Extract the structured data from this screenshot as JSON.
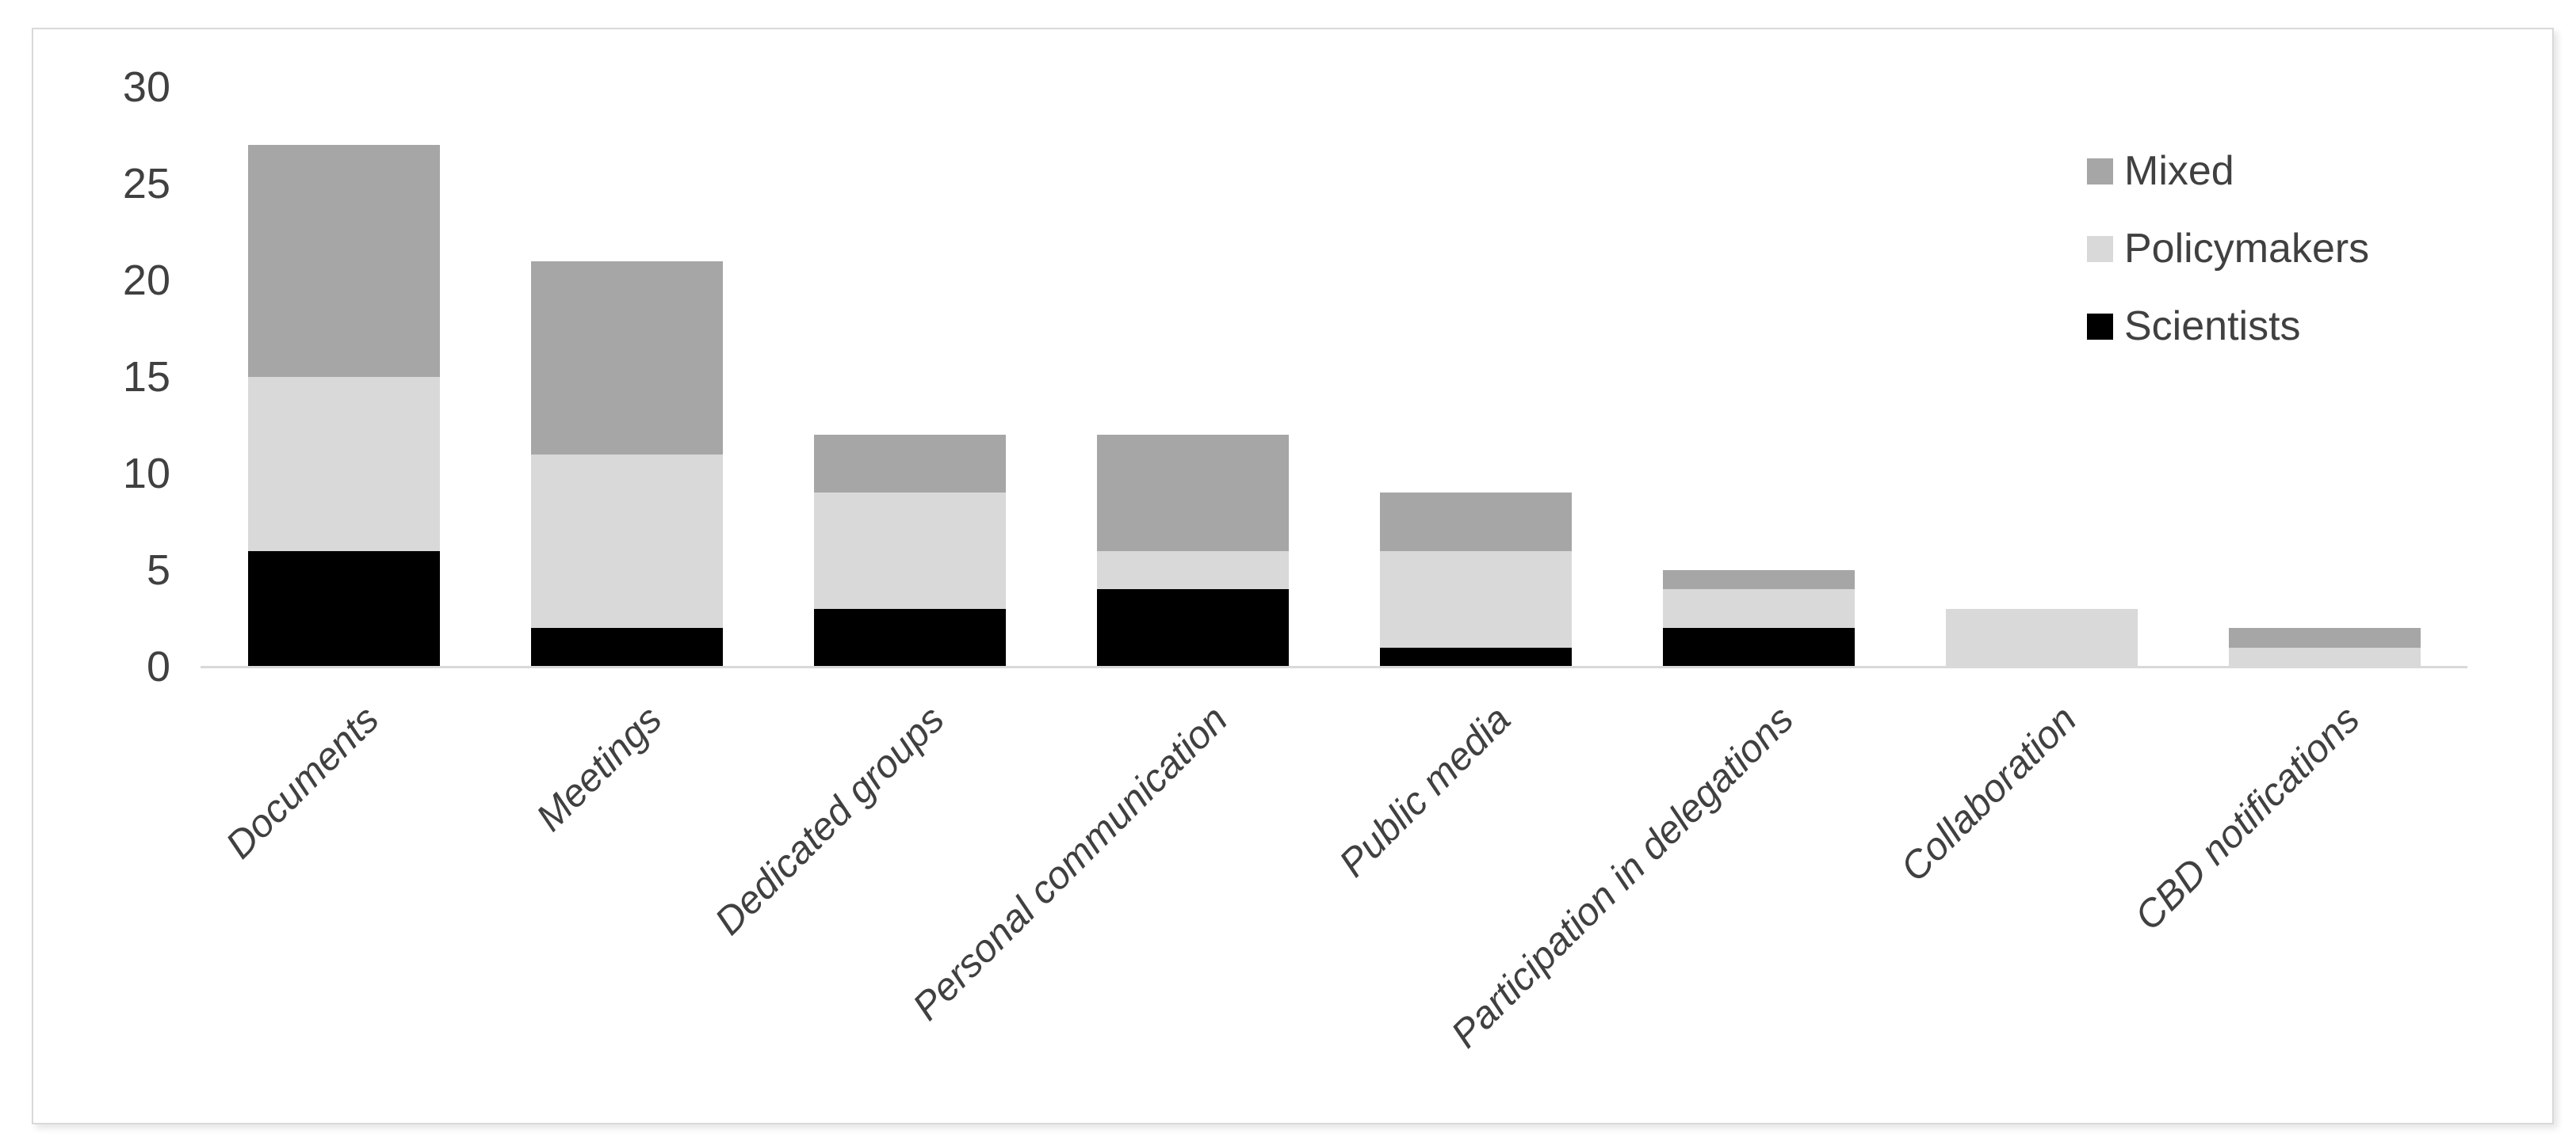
{
  "chart_data": {
    "type": "bar",
    "stacked": true,
    "title": "",
    "xlabel": "",
    "ylabel": "",
    "categories": [
      "Documents",
      "Meetings",
      "Dedicated groups",
      "Personal communication",
      "Public media",
      "Participation in delegations",
      "Collaboration",
      "CBD notifications"
    ],
    "series": [
      {
        "name": "Scientists",
        "color": "#000000",
        "values": [
          6,
          2,
          3,
          4,
          1,
          2,
          0,
          0
        ]
      },
      {
        "name": "Policymakers",
        "color": "#d9d9d9",
        "values": [
          9,
          9,
          6,
          2,
          5,
          2,
          3,
          1
        ]
      },
      {
        "name": "Mixed",
        "color": "#a6a6a6",
        "values": [
          12,
          10,
          3,
          6,
          3,
          1,
          0,
          1
        ]
      }
    ],
    "totals": [
      27,
      21,
      12,
      12,
      9,
      5,
      3,
      2
    ],
    "ylim": [
      0,
      30
    ],
    "yticks": [
      0,
      5,
      10,
      15,
      20,
      25,
      30
    ],
    "grid": false,
    "legend_position": "top-right",
    "legend_order": [
      "Mixed",
      "Policymakers",
      "Scientists"
    ]
  },
  "colors": {
    "axis_line": "#d9d9d9",
    "frame_border": "#d9d9d9",
    "tick_text": "#404040",
    "background": "#ffffff"
  }
}
